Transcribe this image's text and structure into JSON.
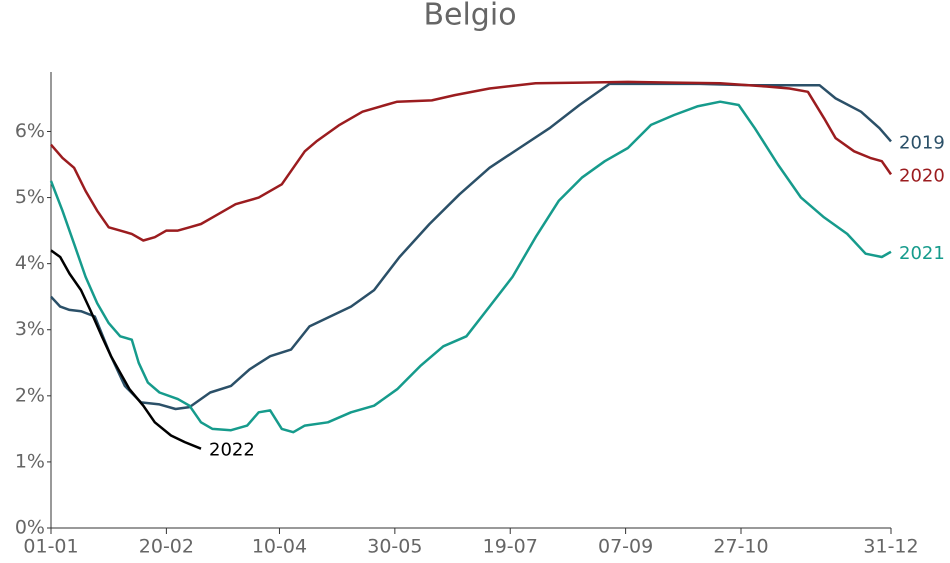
{
  "chart_data": {
    "type": "line",
    "title": "Belgio",
    "xlim": [
      0,
      364
    ],
    "xticks": [
      {
        "value": 0,
        "label": "01-01"
      },
      {
        "value": 50,
        "label": "20-02"
      },
      {
        "value": 99,
        "label": "10-04"
      },
      {
        "value": 149,
        "label": "30-05"
      },
      {
        "value": 199,
        "label": "19-07"
      },
      {
        "value": 249,
        "label": "07-09"
      },
      {
        "value": 299,
        "label": "27-10"
      },
      {
        "value": 364,
        "label": "31-12"
      }
    ],
    "ylim": [
      0,
      6.9
    ],
    "yticks": [
      {
        "value": 0,
        "label": "0%"
      },
      {
        "value": 1,
        "label": "1%"
      },
      {
        "value": 2,
        "label": "2%"
      },
      {
        "value": 3,
        "label": "3%"
      },
      {
        "value": 4,
        "label": "4%"
      },
      {
        "value": 5,
        "label": "5%"
      },
      {
        "value": 6,
        "label": "6%"
      }
    ],
    "grid": false,
    "series": [
      {
        "name": "2019",
        "color": "#2b5068",
        "x": [
          0,
          4,
          8,
          13,
          19,
          26,
          32,
          39,
          47,
          54,
          60,
          69,
          78,
          86,
          95,
          104,
          112,
          121,
          130,
          140,
          151,
          164,
          177,
          190,
          203,
          216,
          229,
          242,
          260,
          281,
          303,
          325,
          333,
          340,
          351,
          359,
          364
        ],
        "values": [
          3.5,
          3.35,
          3.3,
          3.28,
          3.2,
          2.6,
          2.15,
          1.9,
          1.87,
          1.8,
          1.83,
          2.05,
          2.15,
          2.4,
          2.6,
          2.7,
          3.05,
          3.2,
          3.35,
          3.6,
          4.1,
          4.6,
          5.05,
          5.45,
          5.75,
          6.05,
          6.4,
          6.72,
          6.72,
          6.72,
          6.7,
          6.7,
          6.7,
          6.5,
          6.3,
          6.05,
          5.85
        ]
      },
      {
        "name": "2020",
        "color": "#9b1c1f",
        "x": [
          0,
          5,
          10,
          15,
          20,
          25,
          30,
          35,
          40,
          45,
          50,
          55,
          60,
          65,
          70,
          80,
          90,
          100,
          110,
          115,
          125,
          135,
          145,
          150,
          165,
          175,
          190,
          210,
          230,
          250,
          270,
          290,
          310,
          320,
          328,
          335,
          340,
          348,
          355,
          360,
          364
        ],
        "values": [
          5.8,
          5.6,
          5.45,
          5.1,
          4.8,
          4.55,
          4.5,
          4.45,
          4.35,
          4.4,
          4.5,
          4.5,
          4.55,
          4.6,
          4.7,
          4.9,
          5.0,
          5.2,
          5.7,
          5.85,
          6.1,
          6.3,
          6.4,
          6.45,
          6.47,
          6.55,
          6.65,
          6.73,
          6.74,
          6.75,
          6.74,
          6.73,
          6.68,
          6.65,
          6.6,
          6.2,
          5.9,
          5.7,
          5.6,
          5.55,
          5.35
        ]
      },
      {
        "name": "2021",
        "color": "#169b8c",
        "x": [
          0,
          5,
          10,
          15,
          20,
          25,
          30,
          35,
          38,
          42,
          47,
          55,
          60,
          65,
          70,
          78,
          85,
          90,
          95,
          100,
          105,
          110,
          120,
          130,
          140,
          150,
          160,
          170,
          180,
          190,
          200,
          210,
          220,
          230,
          240,
          250,
          260,
          270,
          280,
          290,
          298,
          305,
          315,
          325,
          335,
          345,
          353,
          360,
          364
        ],
        "values": [
          5.25,
          4.8,
          4.3,
          3.8,
          3.4,
          3.1,
          2.9,
          2.85,
          2.5,
          2.2,
          2.05,
          1.95,
          1.85,
          1.6,
          1.5,
          1.48,
          1.55,
          1.75,
          1.78,
          1.5,
          1.45,
          1.55,
          1.6,
          1.75,
          1.85,
          2.1,
          2.45,
          2.75,
          2.9,
          3.35,
          3.8,
          4.4,
          4.95,
          5.3,
          5.55,
          5.75,
          6.1,
          6.25,
          6.38,
          6.45,
          6.4,
          6.05,
          5.5,
          5.0,
          4.7,
          4.45,
          4.15,
          4.1,
          4.18
        ]
      },
      {
        "name": "2022",
        "color": "#000000",
        "x": [
          0,
          4,
          8,
          13,
          17,
          22,
          26,
          30,
          34,
          40,
          45,
          52,
          58,
          65
        ],
        "values": [
          4.2,
          4.1,
          3.85,
          3.6,
          3.3,
          2.9,
          2.6,
          2.35,
          2.1,
          1.85,
          1.6,
          1.4,
          1.3,
          1.2
        ]
      }
    ]
  }
}
